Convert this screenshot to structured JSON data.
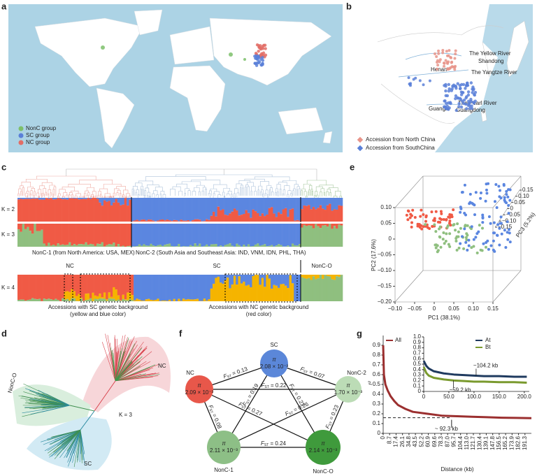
{
  "a": {
    "label": "a",
    "legend": [
      {
        "name": "NonC group",
        "color": "#7dbf6a"
      },
      {
        "name": "SC group",
        "color": "#5a80d8"
      },
      {
        "name": "NC group",
        "color": "#e26d66"
      }
    ]
  },
  "b": {
    "label": "b",
    "places": [
      "The Yellow River",
      "Shandong",
      "Henan",
      "The Yangtze River",
      "The Pearl River",
      "Guangxi",
      "Guangdong"
    ],
    "legend": [
      {
        "name": "Accession from North China",
        "color": "#e8948a"
      },
      {
        "name": "Accession from SouthChina",
        "color": "#5a80d8"
      }
    ]
  },
  "c": {
    "label": "c",
    "k_labels": [
      "K = 2",
      "K = 3",
      "K = 4"
    ],
    "regions": [
      "NonC-1 (from North America: USA, MEX)",
      "NonC-2 (South Asia and Southeast Asia: IND, VNM, IDN, PHL, THA)"
    ],
    "groups": [
      "NC",
      "SC",
      "NonC-O"
    ],
    "notes": [
      [
        "Accessions with SC genetic background",
        "(yellow and blue color)"
      ],
      [
        "Accessions with NC genetic background",
        "(red color)"
      ]
    ]
  },
  "d": {
    "label": "d",
    "clades": [
      "NC",
      "NonC-O",
      "SC"
    ],
    "k_label": "K = 3"
  },
  "e": {
    "label": "e",
    "xlabel": "PC1 (38.1%)",
    "ylabel": "PC2 (17.6%)",
    "zlabel": "PC3 (5.2%)",
    "xlim": [
      -0.1,
      0.15
    ],
    "xticks": [
      {
        "value": -0.1,
        "label": "−0.10"
      },
      {
        "value": -0.05,
        "label": "−0.05"
      },
      0,
      0.05,
      {
        "value": 0.1,
        "label": "0.10"
      },
      0.15
    ],
    "ylim": [
      -0.2,
      0.1
    ],
    "yticks": [
      {
        "value": -0.2,
        "label": "−0.20"
      },
      {
        "value": -0.15,
        "label": "−0.15"
      },
      {
        "value": -0.1,
        "label": "−0.10"
      },
      {
        "value": -0.05,
        "label": "−0.05"
      },
      0,
      0.05,
      {
        "value": 0.1,
        "label": "0.10"
      }
    ],
    "zlim": [
      -0.15,
      0.15
    ],
    "zticks": [
      {
        "value": -0.15,
        "label": "−0.15"
      },
      {
        "value": -0.1,
        "label": "−0.10"
      },
      {
        "value": -0.05,
        "label": "−0.05"
      },
      0,
      0.05,
      {
        "value": 0.1,
        "label": "0.10"
      },
      0.15
    ]
  },
  "f": {
    "label": "f",
    "pi_symbol": "π",
    "fst_symbol": "F",
    "fst_sub": "ST",
    "equals": " = ",
    "nodes": [
      {
        "name": "SC",
        "pi": "2.08 × 10⁻³",
        "color": "#5b87d9"
      },
      {
        "name": "NC",
        "pi": "2.09 × 10⁻³",
        "color": "#e8574a"
      },
      {
        "name": "NonC-2",
        "pi": "1.70 × 10⁻³",
        "color": "#bcdcb6"
      },
      {
        "name": "NonC-1",
        "pi": "2.11 × 10⁻³",
        "color": "#8dbf86"
      },
      {
        "name": "NonC-O",
        "pi": "2.14 × 10⁻³",
        "color": "#3f9a3c"
      }
    ],
    "edges": [
      {
        "from": "NC",
        "to": "SC",
        "fst": 0.13
      },
      {
        "from": "SC",
        "to": "NonC-2",
        "fst": 0.07
      },
      {
        "from": "NC",
        "to": "NonC-2",
        "fst": 0.22
      },
      {
        "from": "SC",
        "to": "NonC-1",
        "fst": 0.19
      },
      {
        "from": "SC",
        "to": "NonC-O",
        "fst": 0.23
      },
      {
        "from": "NC",
        "to": "NonC-O",
        "fst": 0.27
      },
      {
        "from": "NC",
        "to": "NonC-1",
        "fst": 0.08
      },
      {
        "from": "NonC-2",
        "to": "NonC-1",
        "fst": 0.26
      },
      {
        "from": "NonC-2",
        "to": "NonC-O",
        "fst": 0.23
      },
      {
        "from": "NonC-1",
        "to": "NonC-O",
        "fst": 0.24
      }
    ]
  },
  "g": {
    "label": "g",
    "main": {
      "ylabel": "r²",
      "xlabel": "Distance (kb)",
      "xlim": [
        0,
        200
      ],
      "ylim": [
        0,
        1
      ],
      "xticks": [
        0,
        8.7,
        17.4,
        26.1,
        34.8,
        43.5,
        52.2,
        60.9,
        69.6,
        78.3,
        {
          "value": 87,
          "label": "87.0"
        },
        95.7,
        104.4,
        {
          "value": 113,
          "label": "113.0"
        },
        121.7,
        130.4,
        139.1,
        147.8,
        156.5,
        165.2,
        173.9,
        182.6,
        191.3
      ],
      "yticks": [
        0,
        0.1,
        0.2,
        0.3,
        0.4,
        0.5,
        0.6,
        0.7,
        0.8,
        0.9
      ],
      "series": [
        {
          "name": "All",
          "color": "#9b2f2f",
          "x": [
            0,
            1,
            3,
            6,
            10,
            15,
            20,
            30,
            40,
            60,
            80,
            100,
            120,
            140,
            160,
            180,
            200
          ],
          "values": [
            0.9,
            0.6,
            0.5,
            0.44,
            0.38,
            0.33,
            0.29,
            0.25,
            0.22,
            0.2,
            0.18,
            0.175,
            0.17,
            0.165,
            0.16,
            0.158,
            0.155
          ]
        }
      ],
      "dashed_line": 0.16,
      "annotation": {
        "text": "~ 92.3 kb",
        "x": 92.3
      }
    },
    "inset": {
      "xlim": [
        0,
        210
      ],
      "ylim": [
        0,
        1
      ],
      "xticks": [
        0,
        {
          "value": 50,
          "label": "50.0"
        },
        {
          "value": 100,
          "label": "100.0"
        },
        {
          "value": 150,
          "label": "150.0"
        },
        {
          "value": 200,
          "label": "200.0"
        }
      ],
      "yticks": [
        0,
        0.1,
        0.2,
        0.3,
        0.4,
        0.5,
        0.6,
        0.7,
        0.8,
        0.9,
        {
          "value": 1,
          "label": "1.0"
        }
      ],
      "series": [
        {
          "name": "At",
          "color": "#1f3a5f",
          "x": [
            0,
            5,
            10,
            20,
            40,
            60,
            80,
            100,
            120,
            150,
            180,
            205
          ],
          "values": [
            0.56,
            0.47,
            0.42,
            0.37,
            0.33,
            0.31,
            0.3,
            0.29,
            0.28,
            0.28,
            0.27,
            0.27
          ]
        },
        {
          "name": "Bt",
          "color": "#7a9a2e",
          "x": [
            0,
            5,
            10,
            20,
            40,
            60,
            80,
            100,
            120,
            150,
            180,
            205
          ],
          "values": [
            0.45,
            0.34,
            0.29,
            0.25,
            0.22,
            0.2,
            0.19,
            0.18,
            0.18,
            0.17,
            0.17,
            0.16
          ]
        }
      ],
      "annotations": [
        {
          "text": "~104.2 kb",
          "x": 104.2,
          "series": "At"
        },
        {
          "text": "~59.2 kb",
          "x": 59.2,
          "series": "Bt"
        }
      ]
    }
  }
}
